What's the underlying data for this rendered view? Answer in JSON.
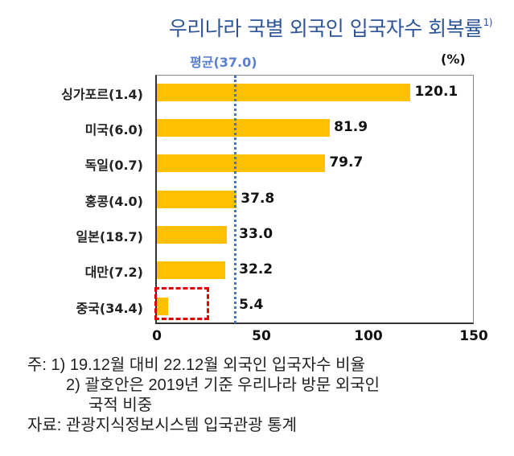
{
  "title": {
    "text": "우리나라 국별 외국인 입국자수 회복률",
    "superscript": "1)"
  },
  "average_label": "평균(37.0)",
  "unit_label": "(%)",
  "colors": {
    "bar": "#ffc000",
    "average_line": "#4472c4",
    "title": "#2f5597",
    "highlight": "#e00000"
  },
  "chart_data": {
    "type": "bar",
    "orientation": "horizontal",
    "title": "우리나라 국별 외국인 입국자수 회복률",
    "xlabel": "",
    "ylabel": "",
    "unit": "%",
    "xlim": [
      0,
      150
    ],
    "xticks": [
      0,
      50,
      100,
      150
    ],
    "categories": [
      "싱가포르(1.4)",
      "미국(6.0)",
      "독일(0.7)",
      "홍콩(4.0)",
      "일본(18.7)",
      "대만(7.2)",
      "중국(34.4)"
    ],
    "values": [
      120.1,
      81.9,
      79.7,
      37.8,
      33.0,
      32.2,
      5.4
    ],
    "value_labels": [
      "120.1",
      "81.9",
      "79.7",
      "37.8",
      "33.0",
      "32.2",
      "5.4"
    ],
    "reference_line": {
      "label": "평균(37.0)",
      "value": 37.0,
      "style": "dotted"
    },
    "highlighted_category": "중국(34.4)",
    "grid": false,
    "legend": null
  },
  "axis": {
    "ticks": [
      "0",
      "50",
      "100",
      "150"
    ]
  },
  "notes": {
    "line1": "주: 1) 19.12월 대비 22.12월 외국인 입국자수 비율",
    "line2": "2) 괄호안은 2019년 기준 우리나라 방문 외국인",
    "line3": "국적 비중",
    "source": "자료: 관광지식정보시스템 입국관광 통계"
  }
}
